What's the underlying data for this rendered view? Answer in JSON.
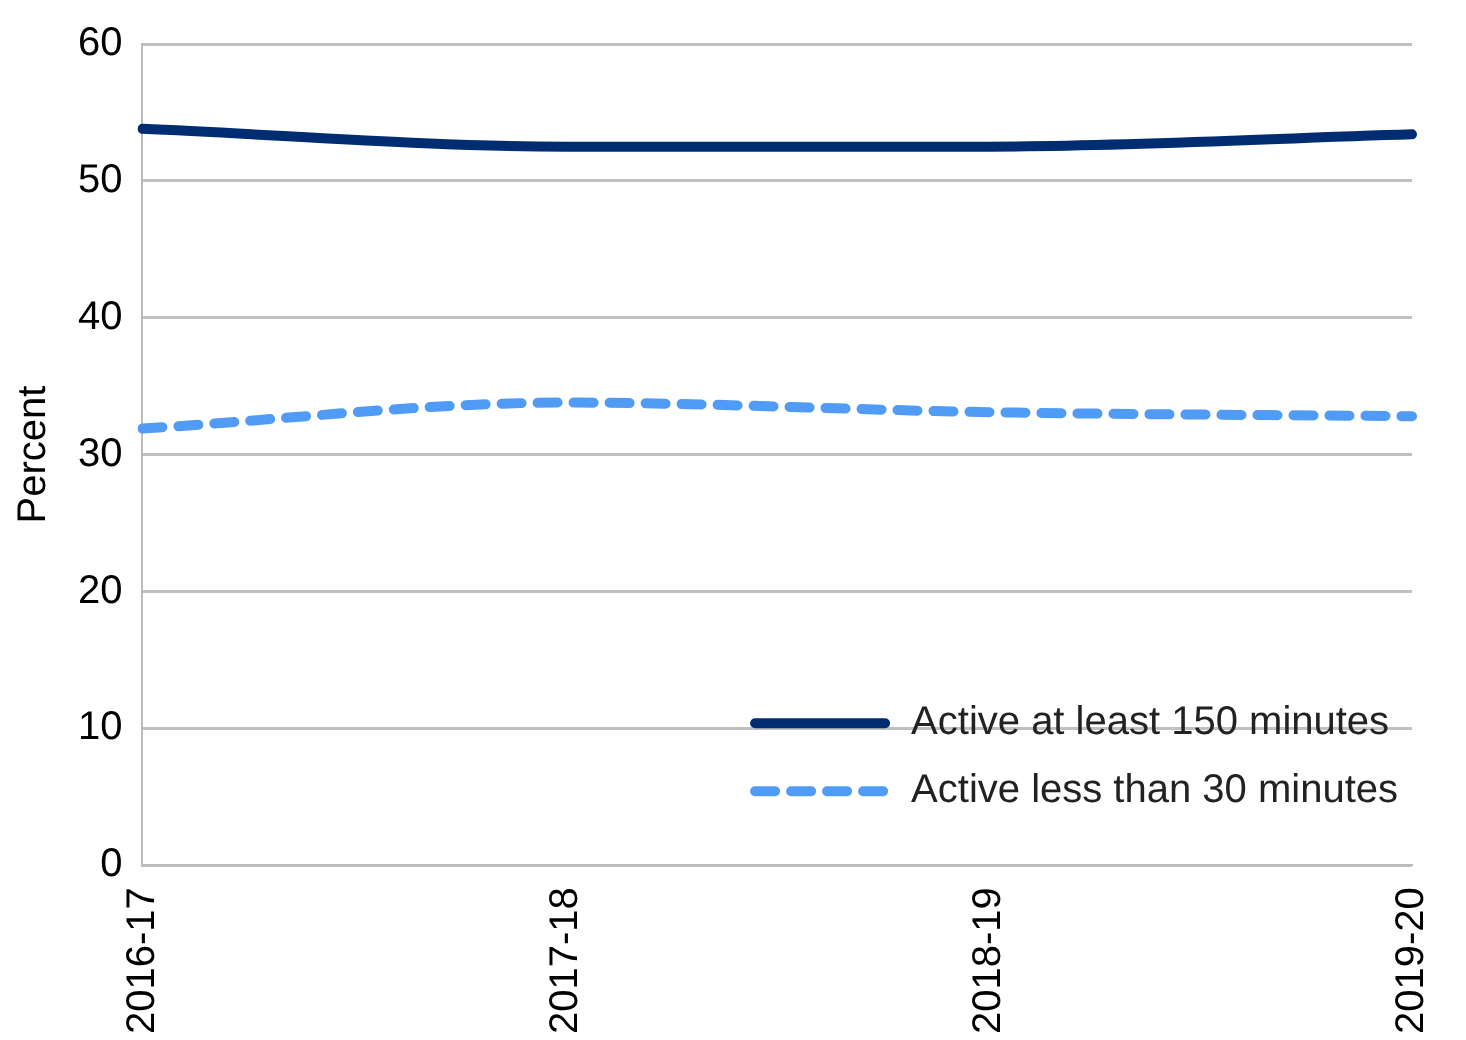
{
  "chart_data": {
    "type": "line",
    "ylabel": "Percent",
    "categories": [
      "2016-17",
      "2017-18",
      "2018-19",
      "2019-20"
    ],
    "series": [
      {
        "name": "Active at least 150 minutes",
        "color": "#002d72",
        "values": [
          53.8,
          52.5,
          52.5,
          53.4
        ],
        "line_style": "solid"
      },
      {
        "name": "Active less than 30 minutes",
        "color": "#4f9bf5",
        "values": [
          31.9,
          33.8,
          33.1,
          32.8
        ],
        "line_style": "dashed"
      }
    ],
    "ylim": [
      0,
      60
    ],
    "yticks": [
      0,
      10,
      20,
      30,
      40,
      50,
      60
    ],
    "grid": "y",
    "legend": "bottom right",
    "marker": "none"
  }
}
